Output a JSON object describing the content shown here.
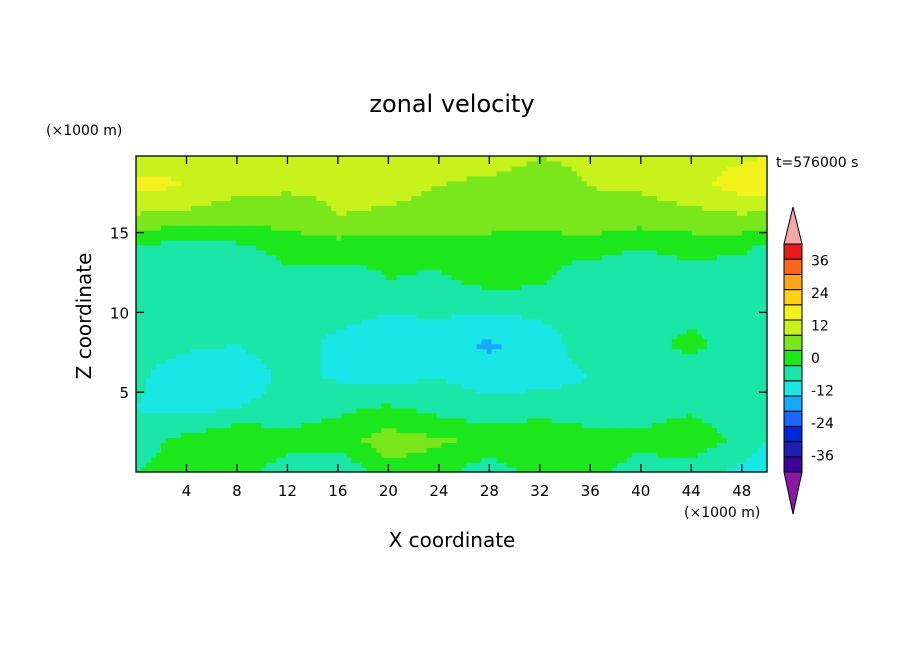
{
  "chart_data": {
    "type": "heatmap",
    "title": "zonal velocity",
    "xlabel": "X coordinate",
    "ylabel": "Z coordinate",
    "x_unit": "(×1000 m)",
    "y_unit": "(×1000 m)",
    "time_label": "t=576000 s",
    "xlim": [
      0,
      50
    ],
    "ylim": [
      0,
      19.8
    ],
    "x_ticks": [
      4,
      8,
      12,
      16,
      20,
      24,
      28,
      32,
      36,
      40,
      44,
      48
    ],
    "y_ticks": [
      5,
      10,
      15
    ],
    "colorbar": {
      "ticks": [
        36,
        24,
        12,
        0,
        -12,
        -24,
        -36
      ],
      "levels": [
        -42,
        -36,
        -30,
        -24,
        -18,
        -12,
        -6,
        0,
        6,
        12,
        18,
        24,
        30,
        36,
        42
      ],
      "colors": [
        "#3d0099",
        "#1f1fb3",
        "#0026d9",
        "#1a66ff",
        "#19a8ff",
        "#1ae6e6",
        "#1ae6a8",
        "#1ce61c",
        "#7ae61c",
        "#c7f21c",
        "#f2f21c",
        "#ffd21a",
        "#ffa51a",
        "#ff661a",
        "#e61a1a"
      ],
      "over_color": "#f5a7a7",
      "under_color": "#8a1aa6"
    },
    "x": [
      0,
      4,
      8,
      12,
      16,
      20,
      24,
      28,
      32,
      36,
      40,
      44,
      48,
      50
    ],
    "z": [
      0,
      2,
      4,
      6,
      8,
      10,
      12,
      14,
      16,
      18,
      19.8
    ],
    "values": [
      [
        0,
        3,
        2,
        -3,
        -6,
        4,
        2,
        -4,
        3,
        1,
        -2,
        -3,
        -8,
        -10
      ],
      [
        -3,
        2,
        6,
        2,
        3,
        9,
        7,
        4,
        6,
        3,
        1,
        4,
        -2,
        -6
      ],
      [
        -6,
        -8,
        -6,
        -3,
        -1,
        1,
        -2,
        -4,
        -3,
        -4,
        -2,
        -1,
        -3,
        -4
      ],
      [
        -5,
        -9,
        -11,
        -4,
        -7,
        -8,
        -6,
        -9,
        -8,
        -6,
        -3,
        -2,
        -5,
        -3
      ],
      [
        -4,
        -5,
        -6,
        -2,
        -8,
        -9,
        -10,
        -13,
        -9,
        -3,
        -1,
        1,
        -2,
        -4
      ],
      [
        -2,
        -4,
        -3,
        -1,
        -4,
        -6,
        -5,
        -6,
        -5,
        -4,
        -3,
        -1,
        -2,
        -1
      ],
      [
        -5,
        -6,
        -4,
        -2,
        -3,
        0,
        -1,
        2,
        1,
        -4,
        -6,
        -3,
        -5,
        -6
      ],
      [
        -2,
        -3,
        -2,
        2,
        3,
        1,
        2,
        3,
        1,
        2,
        0,
        2,
        1,
        -2
      ],
      [
        11,
        10,
        8,
        9,
        12,
        11,
        10,
        9,
        10,
        11,
        9,
        10,
        11,
        10
      ],
      [
        20,
        18,
        14,
        13,
        13,
        14,
        12,
        11,
        10,
        12,
        13,
        16,
        21,
        22
      ],
      [
        15,
        16,
        14,
        13,
        12,
        13,
        14,
        14,
        12,
        13,
        15,
        16,
        17,
        18
      ]
    ]
  }
}
